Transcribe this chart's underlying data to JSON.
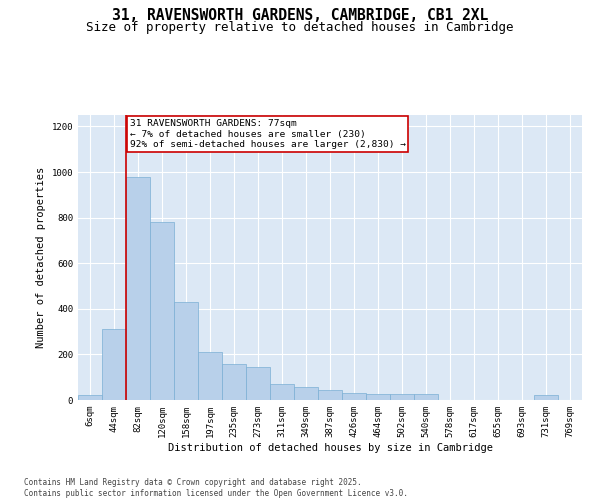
{
  "title_line1": "31, RAVENSWORTH GARDENS, CAMBRIDGE, CB1 2XL",
  "title_line2": "Size of property relative to detached houses in Cambridge",
  "xlabel": "Distribution of detached houses by size in Cambridge",
  "ylabel": "Number of detached properties",
  "categories": [
    "6sqm",
    "44sqm",
    "82sqm",
    "120sqm",
    "158sqm",
    "197sqm",
    "235sqm",
    "273sqm",
    "311sqm",
    "349sqm",
    "387sqm",
    "426sqm",
    "464sqm",
    "502sqm",
    "540sqm",
    "578sqm",
    "617sqm",
    "655sqm",
    "693sqm",
    "731sqm",
    "769sqm"
  ],
  "values": [
    20,
    310,
    980,
    780,
    430,
    210,
    160,
    145,
    70,
    55,
    45,
    30,
    25,
    25,
    25,
    0,
    0,
    0,
    0,
    20,
    0
  ],
  "bar_color": "#b8d0ea",
  "bar_edge_color": "#7aafd4",
  "background_color": "#dce8f5",
  "grid_color": "#ffffff",
  "vline_color": "#cc0000",
  "annotation_text": "31 RAVENSWORTH GARDENS: 77sqm\n← 7% of detached houses are smaller (230)\n92% of semi-detached houses are larger (2,830) →",
  "annotation_box_color": "#cc0000",
  "ylim": [
    0,
    1250
  ],
  "yticks": [
    0,
    200,
    400,
    600,
    800,
    1000,
    1200
  ],
  "footnote": "Contains HM Land Registry data © Crown copyright and database right 2025.\nContains public sector information licensed under the Open Government Licence v3.0.",
  "title_fontsize": 10.5,
  "subtitle_fontsize": 9,
  "axis_label_fontsize": 7.5,
  "tick_fontsize": 6.5,
  "annotation_fontsize": 6.8,
  "footnote_fontsize": 5.5
}
